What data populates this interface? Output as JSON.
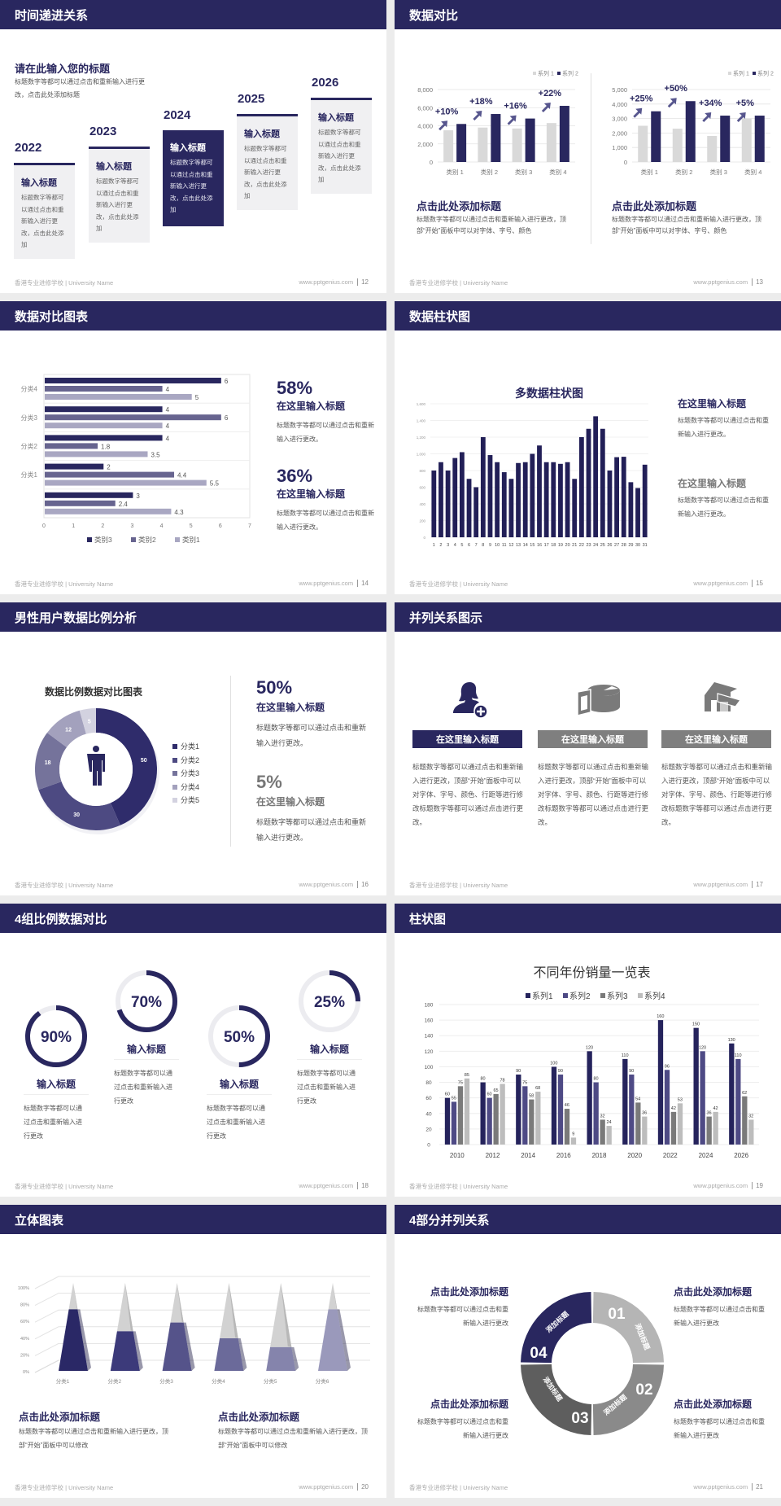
{
  "colors": {
    "primary": "#29275f",
    "light_gray": "#d9d9d9",
    "page_bg": "#ececec"
  },
  "footer": {
    "school": "香港专业进修学校 | University Name",
    "url": "www.pptgenius.com"
  },
  "slides": [
    {
      "page": "12",
      "title": "时间递进关系",
      "subtitle": "请在此输入您的标题",
      "desc": "标题数字等都可以通过点击和重新输入进行更改，点击此处添加标题",
      "cards": [
        {
          "year": "2022",
          "heading": "输入标题",
          "text": "标题数字等都可以通过点击和重新输入进行更改，点击此处添加",
          "highlight": false
        },
        {
          "year": "2023",
          "heading": "输入标题",
          "text": "标题数字等都可以通过点击和重新输入进行更改，点击此处添加",
          "highlight": false
        },
        {
          "year": "2024",
          "heading": "输入标题",
          "text": "标题数字等都可以通过点击和重新输入进行更改，点击此处添加",
          "highlight": true
        },
        {
          "year": "2025",
          "heading": "输入标题",
          "text": "标题数字等都可以通过点击和重新输入进行更改，点击此处添加",
          "highlight": false
        },
        {
          "year": "2026",
          "heading": "输入标题",
          "text": "标题数字等都可以通过点击和重新输入进行更改，点击此处添加",
          "highlight": false
        }
      ]
    },
    {
      "page": "13",
      "title": "数据对比",
      "charts": [
        {
          "type": "bar",
          "categories": [
            "类别 1",
            "类别 2",
            "类别 3",
            "类别 4"
          ],
          "ylim": [
            0,
            8000
          ],
          "yticks": [
            "0",
            "2,000",
            "4,000",
            "6,000",
            "8,000"
          ],
          "series": [
            {
              "name": "系列 1",
              "values": [
                3500,
                3800,
                3700,
                4300
              ],
              "color": "#d9d9d9"
            },
            {
              "name": "系列 2",
              "values": [
                4200,
                5300,
                4800,
                6200
              ],
              "color": "#29275f"
            }
          ],
          "growth_labels": [
            "+10%",
            "+18%",
            "+16%",
            "+22%"
          ]
        },
        {
          "type": "bar",
          "categories": [
            "类别 1",
            "类别 2",
            "类别 3",
            "类别 4"
          ],
          "ylim": [
            0,
            5000
          ],
          "yticks": [
            "0",
            "1,000",
            "2,000",
            "3,000",
            "4,000",
            "5,000"
          ],
          "series": [
            {
              "name": "系列 1",
              "values": [
                2500,
                2300,
                1800,
                3000
              ],
              "color": "#d9d9d9"
            },
            {
              "name": "系列 2",
              "values": [
                3500,
                4200,
                3200,
                3200
              ],
              "color": "#29275f"
            }
          ],
          "growth_labels": [
            "+25%",
            "+50%",
            "+34%",
            "+5%"
          ]
        }
      ],
      "blocks": [
        {
          "title": "点击此处添加标题",
          "desc": "标题数字等都可以通过点击和重新输入进行更改，顶部“开始”面板中可以对字体、字号、颜色"
        },
        {
          "title": "点击此处添加标题",
          "desc": "标题数字等都可以通过点击和重新输入进行更改，顶部“开始”面板中可以对字体、字号、颜色"
        }
      ]
    },
    {
      "page": "14",
      "title": "数据对比图表",
      "chart": {
        "type": "bar",
        "orientation": "horizontal",
        "categories": [
          "",
          "分类1",
          "分类2",
          "分类3",
          "分类4"
        ],
        "xlim": [
          0,
          7
        ],
        "xticks": [
          "0",
          "1",
          "2",
          "3",
          "4",
          "5",
          "6",
          "7"
        ],
        "legend": "bottom",
        "series": [
          {
            "name": "类别3",
            "values": [
              3,
              2,
              4,
              4,
              6
            ],
            "color": "#29275f"
          },
          {
            "name": "类别2",
            "values": [
              2.4,
              4.4,
              1.8,
              6,
              4
            ],
            "color": "#67648f"
          },
          {
            "name": "类别1",
            "values": [
              4.3,
              5.5,
              3.5,
              4,
              5
            ],
            "color": "#a9a7c2"
          }
        ]
      },
      "stats": [
        {
          "value": "58%",
          "title": "在这里输入标题",
          "desc": "标题数字等都可以通过点击和重新输入进行更改。"
        },
        {
          "value": "36%",
          "title": "在这里输入标题",
          "desc": "标题数字等都可以通过点击和重新输入进行更改。"
        }
      ]
    },
    {
      "page": "15",
      "title": "数据柱状图",
      "chart": {
        "type": "bar",
        "title": "多数据柱状图",
        "ylim": [
          0,
          1600
        ],
        "yticks": [
          "0",
          "200",
          "400",
          "600",
          "800",
          "1,000",
          "1,200",
          "1,400",
          "1,600"
        ],
        "categories": [
          "1",
          "2",
          "3",
          "4",
          "5",
          "6",
          "7",
          "8",
          "9",
          "10",
          "11",
          "12",
          "13",
          "14",
          "15",
          "16",
          "17",
          "18",
          "19",
          "20",
          "21",
          "22",
          "23",
          "24",
          "25",
          "26",
          "27",
          "28",
          "29",
          "30",
          "31"
        ],
        "values": [
          800,
          900,
          800,
          950,
          1020,
          700,
          600,
          1200,
          985,
          900,
          780,
          700,
          890,
          900,
          1000,
          1100,
          900,
          900,
          880,
          900,
          700,
          1200,
          1300,
          1450,
          1300,
          800,
          960,
          965,
          660,
          590,
          870
        ]
      },
      "blocks": [
        {
          "title": "在这里输入标题",
          "desc": "标题数字等都可以通过点击和重新输入进行更改。"
        },
        {
          "title": "在这里输入标题",
          "desc": "标题数字等都可以通过点击和重新输入进行更改。"
        }
      ]
    },
    {
      "page": "16",
      "title": "男性用户数据比例分析",
      "chart": {
        "type": "pie",
        "variant": "donut",
        "title": "数据比例数据对比图表",
        "categories": [
          "分类1",
          "分类2",
          "分类3",
          "分类4",
          "分类5"
        ],
        "values": [
          50,
          30,
          18,
          12,
          5
        ],
        "colors": [
          "#2f2c6b",
          "#4d4a82",
          "#75739b",
          "#a3a1bd",
          "#d3d2e0"
        ],
        "legend": "right",
        "center_icon": "male-person-icon"
      },
      "stats": [
        {
          "value": "50%",
          "title": "在这里输入标题",
          "desc": "标题数字等都可以通过点击和重新输入进行更改。"
        },
        {
          "value": "5%",
          "title": "在这里输入标题",
          "desc": "标题数字等都可以通过点击和重新输入进行更改。"
        }
      ]
    },
    {
      "page": "17",
      "title": "并列关系图示",
      "columns": [
        {
          "icon": "female-user-add-icon",
          "label": "在这里输入标题",
          "color": "#29275f",
          "desc": "标题数字等都可以通过点击和重新输入进行更改，顶部“开始”面板中可以对字体、字号、颜色、行距等进行修改标题数字等都可以通过点击进行更改。"
        },
        {
          "icon": "pie-chart-3d-icon",
          "label": "在这里输入标题",
          "color": "#7f7f7f",
          "desc": "标题数字等都可以通过点击和重新输入进行更改，顶部“开始”面板中可以对字体、字号、颜色、行距等进行修改标题数字等都可以通过点击进行更改。"
        },
        {
          "icon": "store-icon",
          "label": "在这里输入标题",
          "color": "#7f7f7f",
          "desc": "标题数字等都可以通过点击和重新输入进行更改，顶部“开始”面板中可以对字体、字号、颜色、行距等进行修改标题数字等都可以通过点击进行更改。"
        }
      ]
    },
    {
      "page": "18",
      "title": "4组比例数据对比",
      "rings": [
        {
          "label": "90%",
          "value": 90,
          "title": "输入标题",
          "desc": "标题数字等都可以通过点击和重新输入进行更改"
        },
        {
          "label": "70%",
          "value": 70,
          "title": "输入标题",
          "desc": "标题数字等都可以通过点击和重新输入进行更改"
        },
        {
          "label": "50%",
          "value": 50,
          "title": "输入标题",
          "desc": "标题数字等都可以通过点击和重新输入进行更改"
        },
        {
          "label": "25%",
          "value": 25,
          "title": "输入标题",
          "desc": "标题数字等都可以通过点击和重新输入进行更改"
        }
      ]
    },
    {
      "page": "19",
      "title": "柱状图",
      "chart": {
        "type": "bar",
        "title": "不同年份销量一览表",
        "legend": "top",
        "ylim": [
          0,
          180
        ],
        "yticks": [
          "0",
          "20",
          "40",
          "60",
          "80",
          "100",
          "120",
          "140",
          "160",
          "180"
        ],
        "categories": [
          "2010",
          "2012",
          "2014",
          "2016",
          "2018",
          "2020",
          "2022",
          "2024",
          "2026"
        ],
        "series": [
          {
            "name": "系列1",
            "values": [
              60,
              80,
              90,
              100,
              120,
              110,
              160,
              150,
              130
            ],
            "color": "#25235c"
          },
          {
            "name": "系列2",
            "values": [
              55,
              60,
              75,
              90,
              80,
              90,
              96,
              120,
              110
            ],
            "color": "#4e4a85"
          },
          {
            "name": "系列3",
            "values": [
              75,
              65,
              58,
              46,
              32,
              54,
              42,
              36,
              62
            ],
            "color": "#7a7a7a"
          },
          {
            "name": "系列4",
            "values": [
              85,
              78,
              68,
              9,
              24,
              36,
              53,
              42,
              32
            ],
            "color": "#bdbdbd"
          }
        ]
      }
    },
    {
      "page": "20",
      "title": "立体图表",
      "chart": {
        "type": "bar",
        "variant": "3d-pyramid-stacked-percent",
        "categories": [
          "分类1",
          "分类2",
          "分类3",
          "分类4",
          "分类5",
          "分类6"
        ],
        "values": [
          70,
          45,
          55,
          37,
          27,
          70
        ],
        "yticks": [
          "0%",
          "20%",
          "40%",
          "60%",
          "80%",
          "100%"
        ],
        "colors": [
          "#2a2866",
          "#3c3a7a",
          "#55538a",
          "#6b6a9a",
          "#8584ac",
          "#9a99bb"
        ]
      },
      "blocks": [
        {
          "title": "点击此处添加标题",
          "desc": "标题数字等都可以通过点击和重新输入进行更改，顶部“开始”面板中可以修改"
        },
        {
          "title": "点击此处添加标题",
          "desc": "标题数字等都可以通过点击和重新输入进行更改，顶部“开始”面板中可以修改"
        }
      ]
    },
    {
      "page": "21",
      "title": "4部分并列关系",
      "segments": [
        {
          "num": "01",
          "label": "添加标题",
          "color": "#b5b5b5"
        },
        {
          "num": "02",
          "label": "添加标题",
          "color": "#8a8a8a"
        },
        {
          "num": "03",
          "label": "添加标题",
          "color": "#5e5e5e"
        },
        {
          "num": "04",
          "label": "添加标题",
          "color": "#29275f"
        }
      ],
      "blocks": [
        {
          "title": "点击此处添加标题",
          "desc": "标题数字等都可以通过点击和重新输入进行更改"
        },
        {
          "title": "点击此处添加标题",
          "desc": "标题数字等都可以通过点击和重新输入进行更改"
        },
        {
          "title": "点击此处添加标题",
          "desc": "标题数字等都可以通过点击和重新输入进行更改"
        },
        {
          "title": "点击此处添加标题",
          "desc": "标题数字等都可以通过点击和重新输入进行更改"
        }
      ]
    }
  ]
}
